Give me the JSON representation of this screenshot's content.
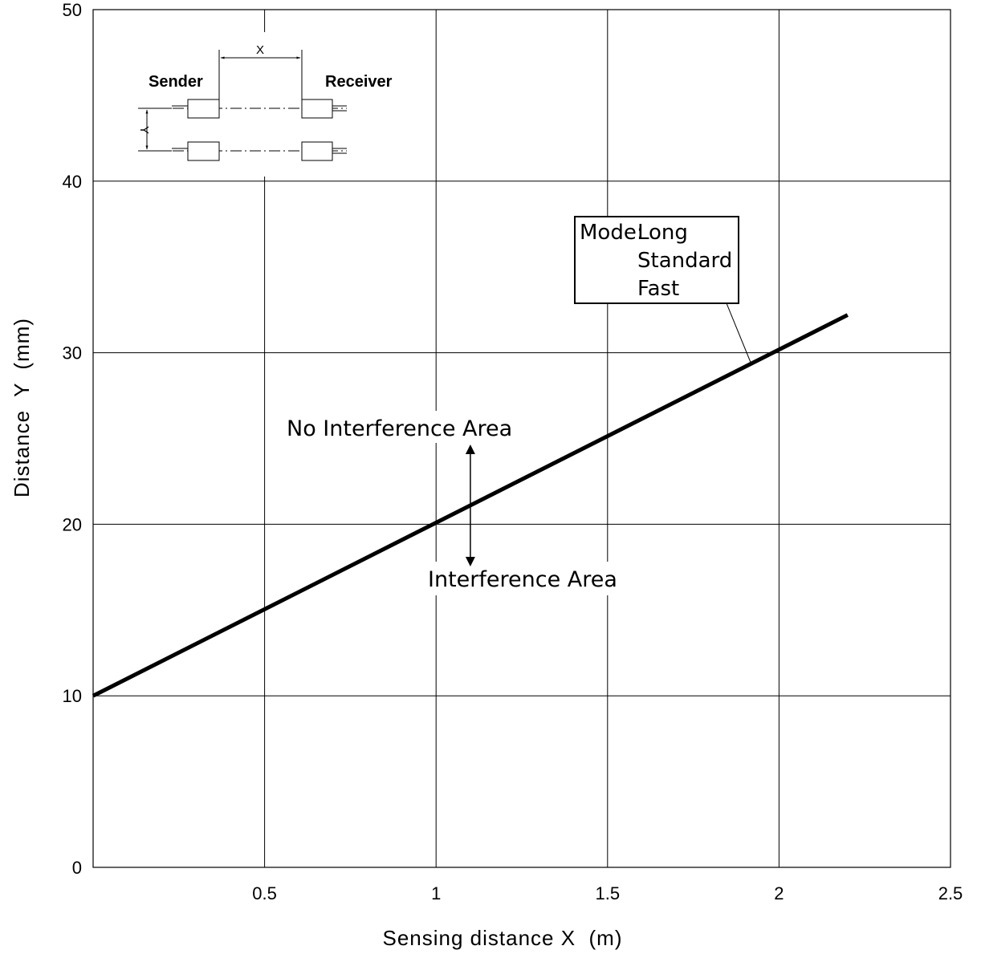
{
  "chart_data": {
    "type": "line",
    "xlabel": "Sensing distance X  (m)",
    "ylabel": "Distance  Y  (mm)",
    "xlim": [
      0,
      2.5
    ],
    "ylim": [
      0,
      50
    ],
    "x_ticks": [
      "0.5",
      "1",
      "1.5",
      "2",
      "2.5"
    ],
    "y_ticks": [
      "0",
      "10",
      "20",
      "30",
      "40",
      "50"
    ],
    "grid": true,
    "series": [
      {
        "x": [
          0,
          2.2
        ],
        "y": [
          10,
          32.2
        ]
      }
    ],
    "legend": {
      "prefix": "Mode:",
      "entries": [
        "Long",
        "Standard",
        "Fast"
      ],
      "placement": "upper-right"
    },
    "annotations": {
      "upper_region": "No Interference Area",
      "lower_region": "Interference Area",
      "arrow_x": 1.1
    },
    "diagram": {
      "sender": "Sender",
      "receiver": "Receiver",
      "x_label": "X",
      "y_label": "Y"
    }
  }
}
